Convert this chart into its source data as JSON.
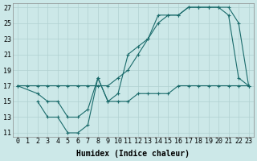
{
  "xlabel": "Humidex (Indice chaleur)",
  "bg_color": "#cce8e8",
  "line_color": "#1a6b6b",
  "grid_color": "#b0d0d0",
  "xlim": [
    -0.5,
    23.5
  ],
  "ylim": [
    10.5,
    27.5
  ],
  "xticks": [
    0,
    1,
    2,
    3,
    4,
    5,
    6,
    7,
    8,
    9,
    10,
    11,
    12,
    13,
    14,
    15,
    16,
    17,
    18,
    19,
    20,
    21,
    22,
    23
  ],
  "yticks": [
    11,
    13,
    15,
    17,
    19,
    21,
    23,
    25,
    27
  ],
  "line1_x": [
    0,
    1,
    2,
    3,
    4,
    5,
    6,
    7,
    8,
    9,
    10,
    11,
    12,
    13,
    14,
    15,
    16,
    17,
    18,
    19,
    20,
    21,
    22,
    23
  ],
  "line1_y": [
    17,
    17,
    17,
    17,
    17,
    17,
    17,
    17,
    17,
    17,
    18,
    19,
    21,
    23,
    25,
    26,
    26,
    27,
    27,
    27,
    27,
    27,
    25,
    17
  ],
  "line2_x": [
    0,
    2,
    3,
    4,
    5,
    6,
    7,
    8,
    9,
    10,
    11,
    12,
    13,
    14,
    15,
    16,
    17,
    18,
    19,
    20,
    21,
    22,
    23
  ],
  "line2_y": [
    17,
    16,
    15,
    15,
    13,
    13,
    14,
    18,
    15,
    16,
    21,
    22,
    23,
    26,
    26,
    26,
    27,
    27,
    27,
    27,
    26,
    18,
    17
  ],
  "line3_x": [
    2,
    3,
    4,
    5,
    6,
    7,
    8,
    9,
    10,
    11,
    12,
    13,
    14,
    15,
    16,
    17,
    18,
    19,
    20,
    21,
    22,
    23
  ],
  "line3_y": [
    15,
    13,
    13,
    11,
    11,
    12,
    18,
    15,
    15,
    15,
    16,
    16,
    16,
    16,
    17,
    17,
    17,
    17,
    17,
    17,
    17,
    17
  ],
  "xlabel_fontsize": 7,
  "tick_fontsize": 6
}
